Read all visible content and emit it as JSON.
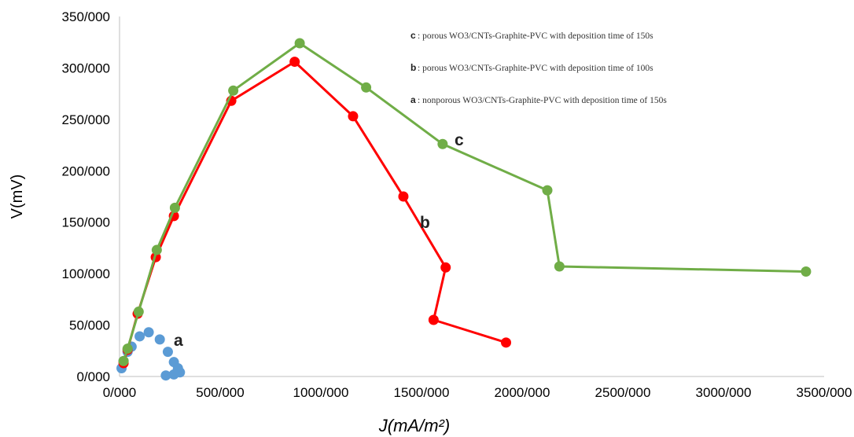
{
  "chart_data": {
    "type": "scatter",
    "xlabel": "J(mA/m²)",
    "ylabel": "V(mV)",
    "xlim": [
      0,
      3500
    ],
    "ylim": [
      0,
      350
    ],
    "x_ticks": [
      "0/000",
      "500/000",
      "1000/000",
      "1500/000",
      "2000/000",
      "2500/000",
      "3000/000",
      "3500/000"
    ],
    "y_ticks": [
      "0/000",
      "50/000",
      "100/000",
      "150/000",
      "200/000",
      "250/000",
      "300/000",
      "350/000"
    ],
    "grid": false,
    "legend_placement": "top-right",
    "legend": [
      {
        "key": "c",
        "text": ": porous WO3/CNTs-Graphite-PVC with deposition time of 150s"
      },
      {
        "key": "b",
        "text": ": porous WO3/CNTs-Graphite-PVC with deposition time of 100s"
      },
      {
        "key": "a",
        "text": ": nonporous WO3/CNTs-Graphite-PVC with deposition time of 150s"
      }
    ],
    "series": [
      {
        "name": "a",
        "color": "#5b9bd5",
        "connected": false,
        "points": [
          [
            10,
            8
          ],
          [
            20,
            15
          ],
          [
            40,
            24
          ],
          [
            60,
            29
          ],
          [
            100,
            39
          ],
          [
            145,
            43
          ],
          [
            200,
            36
          ],
          [
            240,
            24
          ],
          [
            270,
            14
          ],
          [
            290,
            8
          ],
          [
            300,
            4
          ],
          [
            270,
            2
          ],
          [
            230,
            1
          ]
        ]
      },
      {
        "name": "b",
        "color": "#ff0000",
        "connected": true,
        "points": [
          [
            20,
            13
          ],
          [
            40,
            26
          ],
          [
            90,
            61
          ],
          [
            180,
            116
          ],
          [
            270,
            156
          ],
          [
            555,
            268
          ],
          [
            870,
            306
          ],
          [
            1160,
            253
          ],
          [
            1410,
            175
          ],
          [
            1620,
            106
          ],
          [
            1560,
            55
          ],
          [
            1920,
            33
          ]
        ]
      },
      {
        "name": "c",
        "color": "#70ad47",
        "connected": true,
        "points": [
          [
            20,
            15
          ],
          [
            40,
            27
          ],
          [
            95,
            63
          ],
          [
            185,
            123
          ],
          [
            275,
            164
          ],
          [
            565,
            278
          ],
          [
            895,
            324
          ],
          [
            1225,
            281
          ],
          [
            1605,
            226
          ],
          [
            2125,
            181
          ],
          [
            2185,
            107
          ],
          [
            3410,
            102
          ]
        ]
      }
    ]
  }
}
